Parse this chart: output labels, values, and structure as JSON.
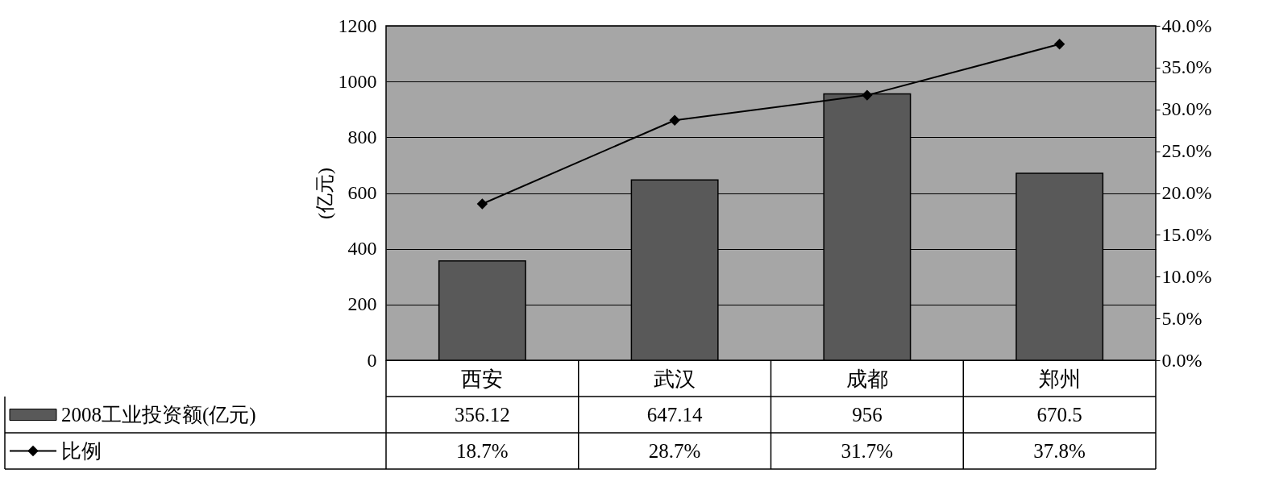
{
  "chart_data": {
    "type": "bar",
    "ylabel": "(亿元)",
    "categories": [
      "西安",
      "武汉",
      "成都",
      "郑州"
    ],
    "series": [
      {
        "name": "2008工业投资额(亿元)",
        "color": "#595959",
        "values": [
          356.12,
          647.14,
          956,
          670.5
        ],
        "value_labels": [
          "356.12",
          "647.14",
          "956",
          "670.5"
        ]
      },
      {
        "name": "比例",
        "type": "line",
        "axis": "y2",
        "color": "#000000",
        "values": [
          18.7,
          28.7,
          31.7,
          37.8
        ],
        "value_labels": [
          "18.7%",
          "28.7%",
          "31.7%",
          "37.8%"
        ]
      }
    ],
    "ylim": [
      0,
      1200
    ],
    "yticks": [
      0,
      200,
      400,
      600,
      800,
      1000,
      1200
    ],
    "y2lim": [
      0,
      40
    ],
    "y2ticks": [
      {
        "value": 0,
        "label": "0.0%"
      },
      {
        "value": 5,
        "label": "5.0%"
      },
      {
        "value": 10,
        "label": "10.0%"
      },
      {
        "value": 15,
        "label": "15.0%"
      },
      {
        "value": 20,
        "label": "20.0%"
      },
      {
        "value": 25,
        "label": "25.0%"
      },
      {
        "value": 30,
        "label": "30.0%"
      },
      {
        "value": 35,
        "label": "35.0%"
      },
      {
        "value": 40,
        "label": "40.0%"
      }
    ],
    "grid": "y",
    "marker": "diamond",
    "line_style": "solid",
    "legend": "bottom"
  }
}
